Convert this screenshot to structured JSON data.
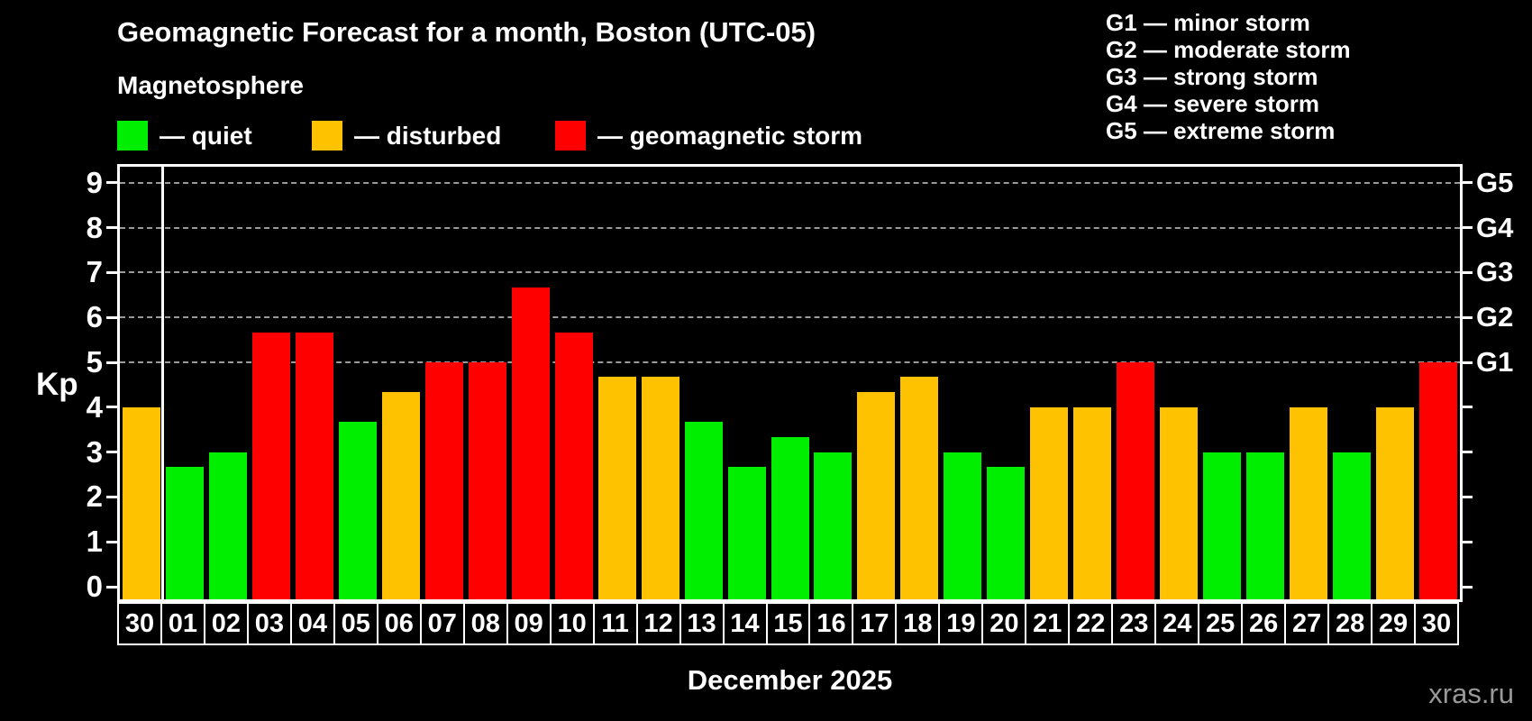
{
  "title": "Geomagnetic Forecast for a month, Boston (UTC-05)",
  "subtitle": "Magnetosphere",
  "legend": [
    {
      "label": "— quiet",
      "status": "quiet"
    },
    {
      "label": "— disturbed",
      "status": "disturbed"
    },
    {
      "label": "— geomagnetic storm",
      "status": "storm"
    }
  ],
  "g_scale_legend": [
    "G1 — minor storm",
    "G2 — moderate storm",
    "G3 — strong storm",
    "G4 — severe storm",
    "G5 — extreme storm"
  ],
  "colors": {
    "quiet": "#00ee00",
    "disturbed": "#ffc200",
    "storm": "#ff0000",
    "background": "#000000",
    "axis": "#ffffff",
    "grid": "#9a9a9a",
    "watermark": "#999999"
  },
  "axis": {
    "y_label": "Kp",
    "y_ticks": [
      0,
      1,
      2,
      3,
      4,
      5,
      6,
      7,
      8,
      9
    ],
    "right_labels": [
      {
        "label": "G1",
        "kp": 5
      },
      {
        "label": "G2",
        "kp": 6
      },
      {
        "label": "G3",
        "kp": 7
      },
      {
        "label": "G4",
        "kp": 8
      },
      {
        "label": "G5",
        "kp": 9
      }
    ]
  },
  "footer": {
    "month_label": "December 2025",
    "watermark": "xras.ru"
  },
  "chart_data": {
    "type": "bar",
    "title": "Geomagnetic Forecast for a month, Boston (UTC-05)",
    "xlabel": "December 2025",
    "ylabel": "Kp",
    "ylim": [
      0,
      9.4
    ],
    "grid_on": true,
    "grid_levels": [
      5,
      6,
      7,
      8,
      9
    ],
    "legend_position": "top-left",
    "categories": [
      "30",
      "01",
      "02",
      "03",
      "04",
      "05",
      "06",
      "07",
      "08",
      "09",
      "10",
      "11",
      "12",
      "13",
      "14",
      "15",
      "16",
      "17",
      "18",
      "19",
      "20",
      "21",
      "22",
      "23",
      "24",
      "25",
      "26",
      "27",
      "28",
      "29",
      "30"
    ],
    "values": [
      4,
      2.67,
      3,
      5.67,
      5.67,
      3.67,
      4.33,
      5,
      5,
      6.67,
      5.67,
      4.67,
      4.67,
      3.67,
      2.67,
      3.33,
      3,
      4.33,
      4.67,
      3,
      2.67,
      4,
      4,
      5,
      4,
      3,
      3,
      4,
      3,
      4,
      5
    ],
    "statuses": [
      "disturbed",
      "quiet",
      "quiet",
      "storm",
      "storm",
      "quiet",
      "disturbed",
      "storm",
      "storm",
      "storm",
      "storm",
      "disturbed",
      "disturbed",
      "quiet",
      "quiet",
      "quiet",
      "quiet",
      "disturbed",
      "disturbed",
      "quiet",
      "quiet",
      "disturbed",
      "disturbed",
      "storm",
      "disturbed",
      "quiet",
      "quiet",
      "disturbed",
      "quiet",
      "disturbed",
      "storm"
    ],
    "separator_after_index": 0
  }
}
